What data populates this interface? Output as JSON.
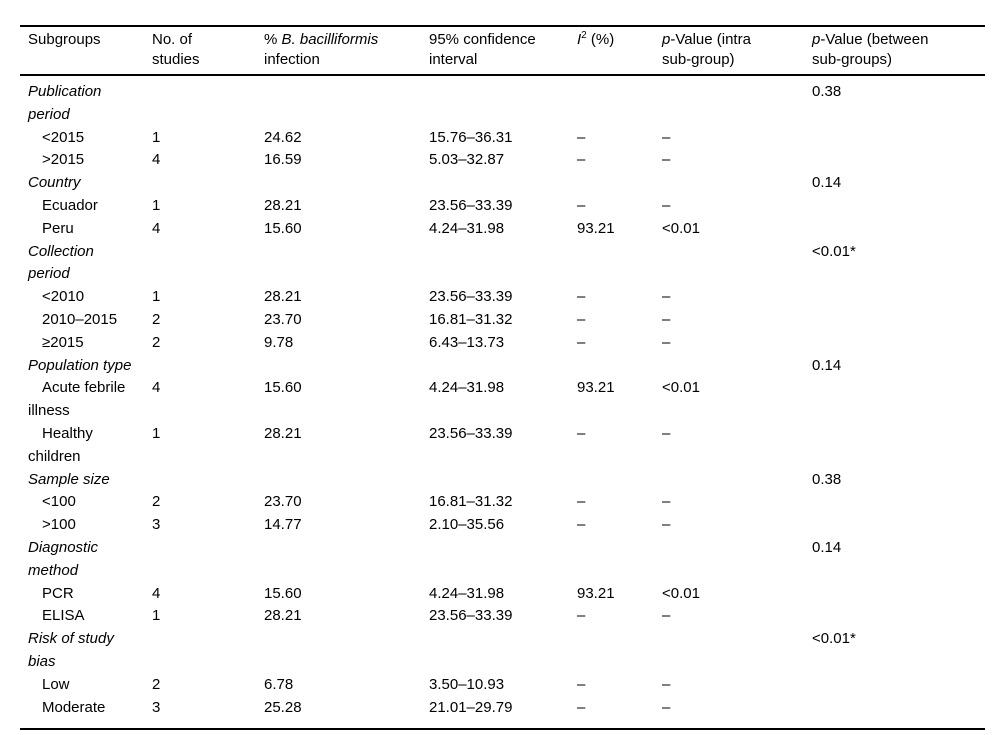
{
  "table": {
    "header": {
      "subgroups": "Subgroups",
      "no_of_studies": "No. of\nstudies",
      "pct_prefix": "% ",
      "pct_species": "B. bacilliformis",
      "pct_suffix": "\ninfection",
      "ci": "95% confidence\ninterval",
      "i2_letter": "I",
      "i2_sup": "2",
      "i2_rest": " (%)",
      "p_intra_italic": "p",
      "p_intra_rest": "-Value (intra\nsub-group)",
      "p_between_italic": "p",
      "p_between_rest": "-Value (between\nsub-groups)"
    },
    "rows": [
      {
        "type": "section",
        "label": "Publication\nperiod",
        "studies": "",
        "pct": "",
        "ci": "",
        "i2": "",
        "p_intra": "",
        "p_between": "0.38"
      },
      {
        "type": "item",
        "label": "<2015",
        "studies": "1",
        "pct": "24.62",
        "ci": "15.76–36.31",
        "i2": "–",
        "p_intra": "–",
        "p_between": ""
      },
      {
        "type": "item",
        "label": ">2015",
        "studies": "4",
        "pct": "16.59",
        "ci": "5.03–32.87",
        "i2": "–",
        "p_intra": "–",
        "p_between": ""
      },
      {
        "type": "section",
        "label": "Country",
        "studies": "",
        "pct": "",
        "ci": "",
        "i2": "",
        "p_intra": "",
        "p_between": "0.14"
      },
      {
        "type": "item",
        "label": "Ecuador",
        "studies": "1",
        "pct": "28.21",
        "ci": "23.56–33.39",
        "i2": "–",
        "p_intra": "–",
        "p_between": ""
      },
      {
        "type": "item",
        "label": "Peru",
        "studies": "4",
        "pct": "15.60",
        "ci": "4.24–31.98",
        "i2": "93.21",
        "p_intra": "<0.01",
        "p_between": ""
      },
      {
        "type": "section",
        "label": "Collection\nperiod",
        "studies": "",
        "pct": "",
        "ci": "",
        "i2": "",
        "p_intra": "",
        "p_between": "<0.01*"
      },
      {
        "type": "item",
        "label": "<2010",
        "studies": "1",
        "pct": "28.21",
        "ci": "23.56–33.39",
        "i2": "–",
        "p_intra": "–",
        "p_between": ""
      },
      {
        "type": "item",
        "label": "2010–2015",
        "studies": "2",
        "pct": "23.70",
        "ci": "16.81–31.32",
        "i2": "–",
        "p_intra": "–",
        "p_between": ""
      },
      {
        "type": "item",
        "label": "≥2015",
        "studies": "2",
        "pct": "9.78",
        "ci": "6.43–13.73",
        "i2": "–",
        "p_intra": "–",
        "p_between": ""
      },
      {
        "type": "section",
        "label": "Population type",
        "studies": "",
        "pct": "",
        "ci": "",
        "i2": "",
        "p_intra": "",
        "p_between": "0.14"
      },
      {
        "type": "item",
        "label": "Acute febrile\nillness",
        "studies": "4",
        "pct": "15.60",
        "ci": "4.24–31.98",
        "i2": "93.21",
        "p_intra": "<0.01",
        "p_between": ""
      },
      {
        "type": "item",
        "label": "Healthy\nchildren",
        "studies": "1",
        "pct": "28.21",
        "ci": "23.56–33.39",
        "i2": "–",
        "p_intra": "–",
        "p_between": ""
      },
      {
        "type": "section",
        "label": "Sample size",
        "studies": "",
        "pct": "",
        "ci": "",
        "i2": "",
        "p_intra": "",
        "p_between": "0.38"
      },
      {
        "type": "item",
        "label": "<100",
        "studies": "2",
        "pct": "23.70",
        "ci": "16.81–31.32",
        "i2": "–",
        "p_intra": "–",
        "p_between": ""
      },
      {
        "type": "item",
        "label": ">100",
        "studies": "3",
        "pct": "14.77",
        "ci": "2.10–35.56",
        "i2": "–",
        "p_intra": "–",
        "p_between": ""
      },
      {
        "type": "section",
        "label": "Diagnostic\nmethod",
        "studies": "",
        "pct": "",
        "ci": "",
        "i2": "",
        "p_intra": "",
        "p_between": "0.14"
      },
      {
        "type": "item",
        "label": "PCR",
        "studies": "4",
        "pct": "15.60",
        "ci": "4.24–31.98",
        "i2": "93.21",
        "p_intra": "<0.01",
        "p_between": ""
      },
      {
        "type": "item",
        "label": "ELISA",
        "studies": "1",
        "pct": "28.21",
        "ci": "23.56–33.39",
        "i2": "–",
        "p_intra": "–",
        "p_between": ""
      },
      {
        "type": "section",
        "label": "Risk of study\nbias",
        "studies": "",
        "pct": "",
        "ci": "",
        "i2": "",
        "p_intra": "",
        "p_between": "<0.01*"
      },
      {
        "type": "item",
        "label": "Low",
        "studies": "2",
        "pct": "6.78",
        "ci": "3.50–10.93",
        "i2": "–",
        "p_intra": "–",
        "p_between": ""
      },
      {
        "type": "item",
        "label": "Moderate",
        "studies": "3",
        "pct": "25.28",
        "ci": "21.01–29.79",
        "i2": "–",
        "p_intra": "–",
        "p_between": ""
      }
    ]
  }
}
